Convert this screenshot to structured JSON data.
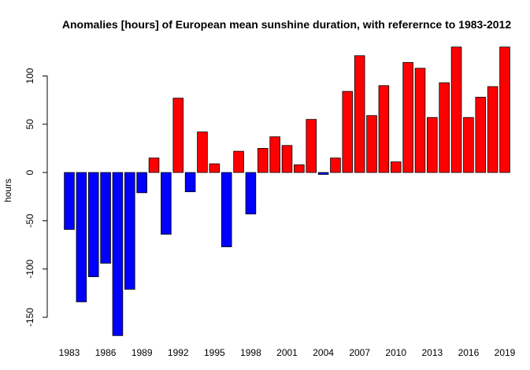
{
  "chart_data": {
    "type": "bar",
    "title": "Anomalies [hours] of European mean sunshine duration, with referernce to 1983-2012",
    "y_label": "hours",
    "categories": [
      "1983",
      null,
      null,
      "1986",
      null,
      null,
      "1989",
      null,
      null,
      "1992",
      null,
      null,
      "1995",
      null,
      null,
      "1998",
      null,
      null,
      "2001",
      null,
      null,
      "2004",
      null,
      null,
      "2007",
      null,
      null,
      "2010",
      null,
      null,
      "2013",
      null,
      null,
      "2016",
      null,
      null,
      "2019"
    ],
    "values": [
      -59,
      -134,
      -108,
      -94,
      -169,
      -121,
      -21,
      15,
      -64,
      77,
      -20,
      42,
      9,
      -77,
      22,
      -43,
      25,
      37,
      28,
      8,
      55,
      -2,
      15,
      84,
      121,
      59,
      90,
      11,
      114,
      108,
      57,
      93,
      130,
      57,
      78,
      89,
      130
    ],
    "positive_color": "#ff0000",
    "negative_color": "#0000ff",
    "ylim": [
      -172,
      142
    ],
    "yticks": [
      -150,
      -100,
      -50,
      0,
      50,
      100
    ]
  }
}
